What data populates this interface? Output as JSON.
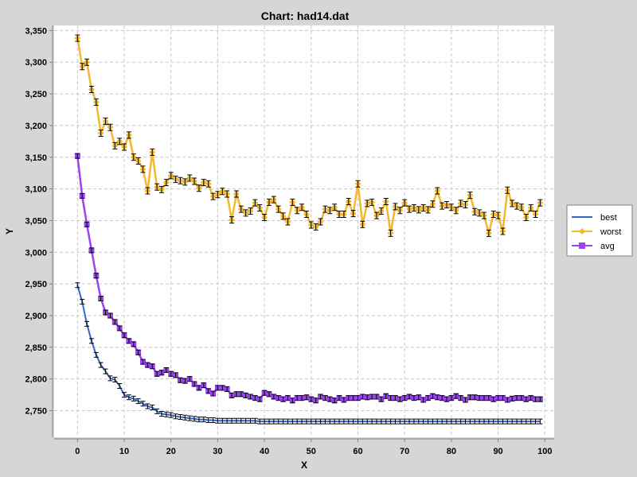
{
  "chart_data": {
    "type": "line",
    "title": "Chart: had14.dat",
    "xlabel": "X",
    "ylabel": "Y",
    "xlim": [
      -5,
      102
    ],
    "ylim": [
      2708,
      3358
    ],
    "x_ticks": [
      0,
      10,
      20,
      30,
      40,
      50,
      60,
      70,
      80,
      90,
      100
    ],
    "y_ticks": [
      2750,
      2800,
      2850,
      2900,
      2950,
      3000,
      3050,
      3100,
      3150,
      3200,
      3250,
      3300,
      3350
    ],
    "y_tick_labels": [
      "2,750",
      "2,800",
      "2,850",
      "2,900",
      "2,950",
      "3,000",
      "3,050",
      "3,100",
      "3,150",
      "3,200",
      "3,250",
      "3,300",
      "3,350"
    ],
    "x_tick_labels": [
      "0",
      "10",
      "20",
      "30",
      "40",
      "50",
      "60",
      "70",
      "80",
      "90",
      "100"
    ],
    "grid": true,
    "legend_position": "right",
    "series": [
      {
        "name": "best",
        "color": "#3366cc",
        "marker": "none",
        "values": [
          2948,
          2922,
          2887,
          2860,
          2838,
          2822,
          2812,
          2801,
          2799,
          2789,
          2775,
          2771,
          2769,
          2765,
          2761,
          2757,
          2755,
          2749,
          2745,
          2744,
          2743,
          2741,
          2740,
          2739,
          2738,
          2737,
          2736,
          2736,
          2735,
          2735,
          2734,
          2734,
          2734,
          2734,
          2734,
          2734,
          2734,
          2734,
          2734,
          2733,
          2733,
          2733,
          2733,
          2733,
          2733,
          2733,
          2733,
          2733,
          2733,
          2733,
          2733,
          2733,
          2733,
          2733,
          2733,
          2733,
          2733,
          2733,
          2733,
          2733,
          2733,
          2733,
          2733,
          2733,
          2733,
          2733,
          2733,
          2733,
          2733,
          2733,
          2733,
          2733,
          2733,
          2733,
          2733,
          2733,
          2733,
          2733,
          2733,
          2733,
          2733,
          2733,
          2733,
          2733,
          2733,
          2733,
          2733,
          2733,
          2733,
          2733,
          2733,
          2733,
          2733,
          2733,
          2733,
          2733,
          2733,
          2733,
          2733,
          2733
        ]
      },
      {
        "name": "worst",
        "color": "#f2b830",
        "marker": "diamond",
        "values": [
          3338,
          3293,
          3300,
          3257,
          3237,
          3188,
          3207,
          3197,
          3168,
          3175,
          3166,
          3185,
          3150,
          3144,
          3131,
          3097,
          3158,
          3103,
          3099,
          3110,
          3121,
          3115,
          3113,
          3111,
          3117,
          3112,
          3101,
          3110,
          3108,
          3088,
          3091,
          3096,
          3092,
          3051,
          3092,
          3068,
          3062,
          3065,
          3078,
          3070,
          3055,
          3079,
          3083,
          3068,
          3057,
          3048,
          3079,
          3066,
          3071,
          3060,
          3043,
          3040,
          3048,
          3068,
          3066,
          3071,
          3060,
          3060,
          3080,
          3061,
          3108,
          3044,
          3077,
          3079,
          3058,
          3065,
          3080,
          3030,
          3072,
          3066,
          3078,
          3068,
          3070,
          3067,
          3070,
          3067,
          3076,
          3097,
          3073,
          3075,
          3071,
          3066,
          3077,
          3075,
          3090,
          3064,
          3062,
          3058,
          3030,
          3060,
          3058,
          3033,
          3098,
          3077,
          3073,
          3071,
          3055,
          3070,
          3060,
          3078
        ]
      },
      {
        "name": "avg",
        "color": "#9944ee",
        "marker": "square",
        "values": [
          3152,
          3089,
          3044,
          3003,
          2963,
          2927,
          2905,
          2900,
          2890,
          2880,
          2869,
          2860,
          2855,
          2842,
          2827,
          2822,
          2820,
          2808,
          2810,
          2814,
          2808,
          2806,
          2798,
          2797,
          2800,
          2792,
          2786,
          2790,
          2781,
          2777,
          2786,
          2786,
          2784,
          2774,
          2776,
          2776,
          2774,
          2772,
          2770,
          2768,
          2778,
          2776,
          2772,
          2770,
          2768,
          2770,
          2766,
          2770,
          2770,
          2771,
          2768,
          2766,
          2772,
          2770,
          2768,
          2766,
          2770,
          2767,
          2770,
          2770,
          2770,
          2772,
          2771,
          2772,
          2772,
          2768,
          2773,
          2770,
          2770,
          2768,
          2770,
          2772,
          2770,
          2771,
          2767,
          2770,
          2773,
          2771,
          2770,
          2768,
          2770,
          2773,
          2770,
          2767,
          2771,
          2771,
          2770,
          2770,
          2770,
          2768,
          2770,
          2770,
          2767,
          2769,
          2770,
          2770,
          2768,
          2770,
          2768,
          2768
        ]
      }
    ]
  }
}
